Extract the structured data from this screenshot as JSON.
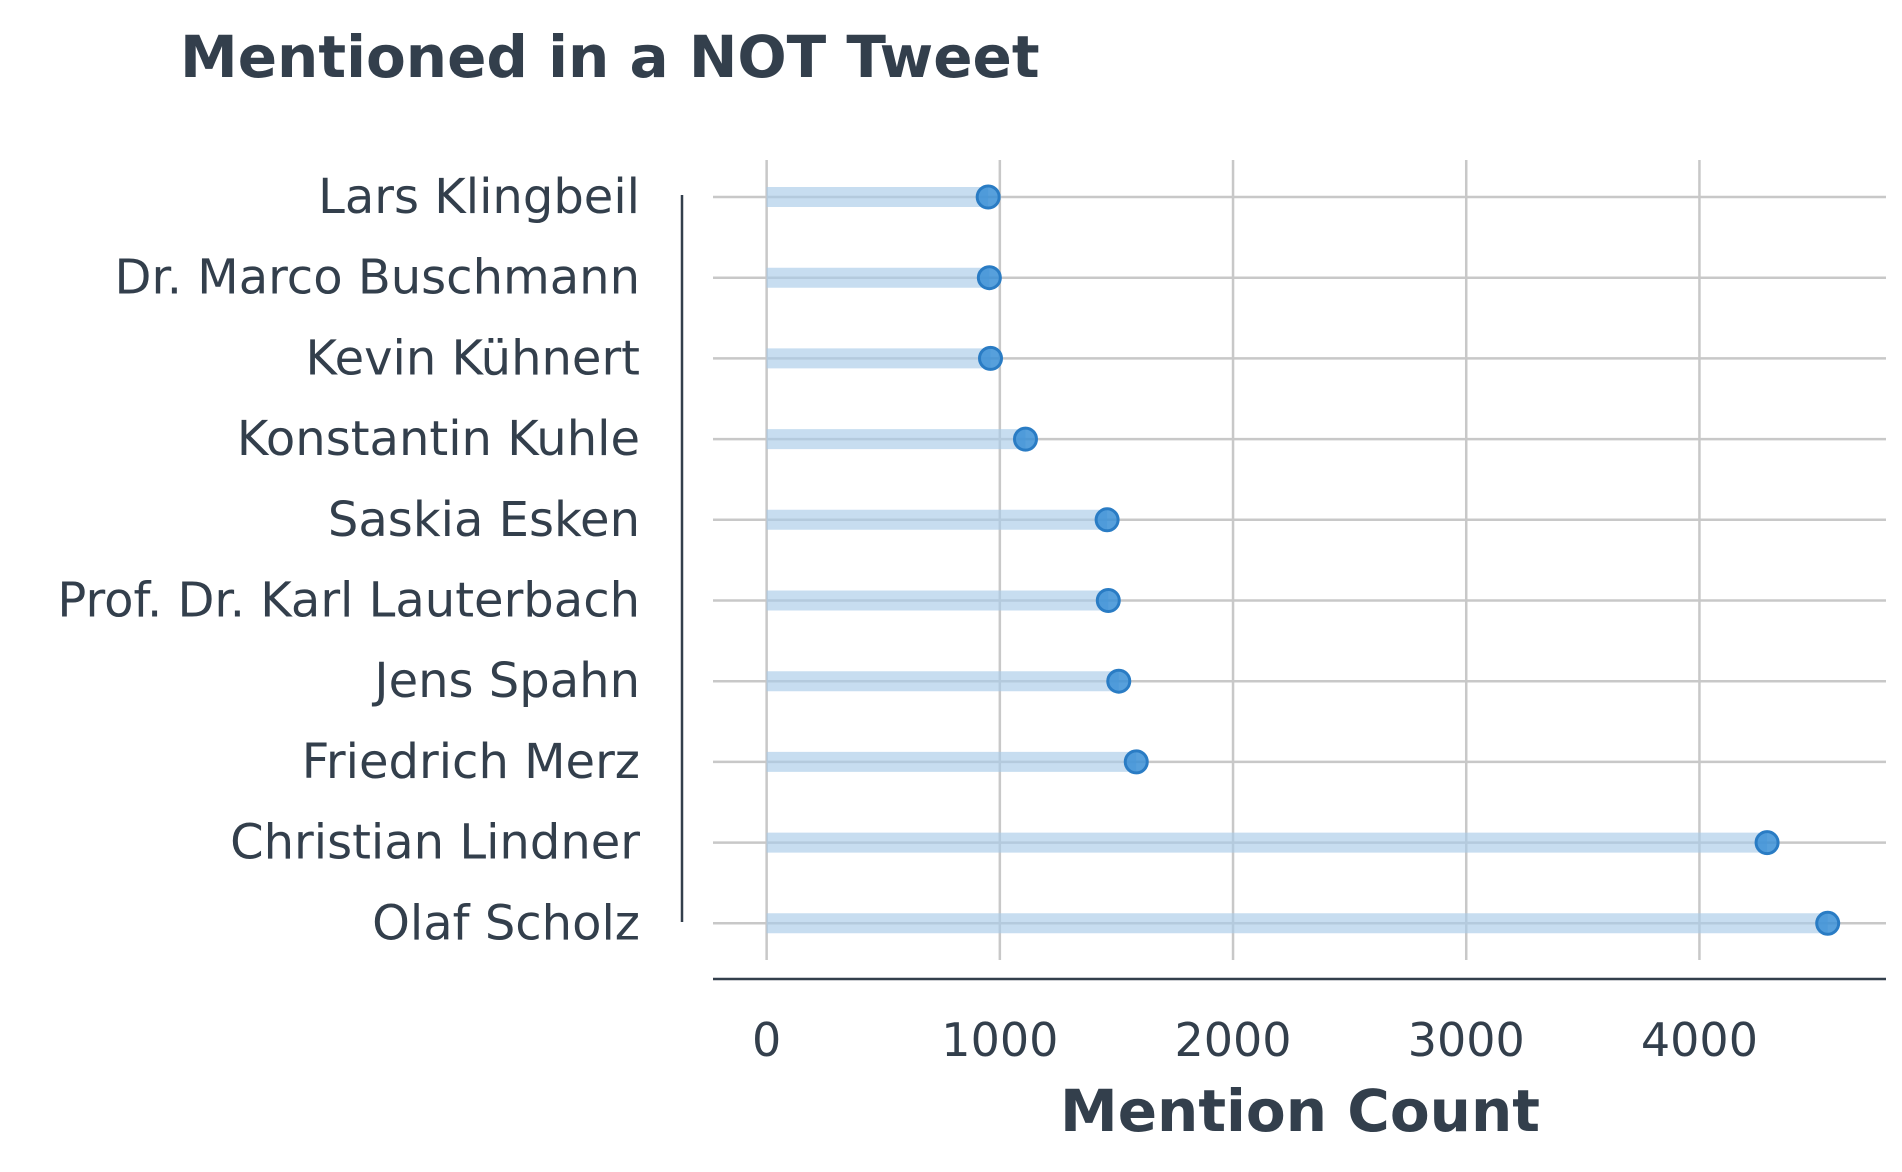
{
  "chart_data": {
    "type": "lollipop",
    "title": "Mentioned in a NOT Tweet",
    "xlabel": "Mention Count",
    "ylabel": "",
    "categories": [
      "Lars Klingbeil",
      "Dr. Marco Buschmann",
      "Kevin Kühnert",
      "Konstantin Kuhle",
      "Saskia Esken",
      "Prof. Dr. Karl Lauterbach",
      "Jens Spahn",
      "Friedrich Merz",
      "Christian Lindner",
      "Olaf Scholz"
    ],
    "values": [
      950,
      955,
      960,
      1110,
      1460,
      1465,
      1510,
      1585,
      4290,
      4550
    ],
    "xlim": [
      -230,
      4800
    ],
    "xticks": [
      0,
      1000,
      2000,
      3000,
      4000
    ],
    "xtick_labels": [
      "0",
      "1000",
      "2000",
      "3000",
      "4000"
    ],
    "grid": true,
    "colors": {
      "point": "#3a8fd6",
      "stem": "#a9cbe8",
      "text": "#333f4c",
      "grid": "#c8c8c8",
      "axis": "#333f4c"
    }
  }
}
